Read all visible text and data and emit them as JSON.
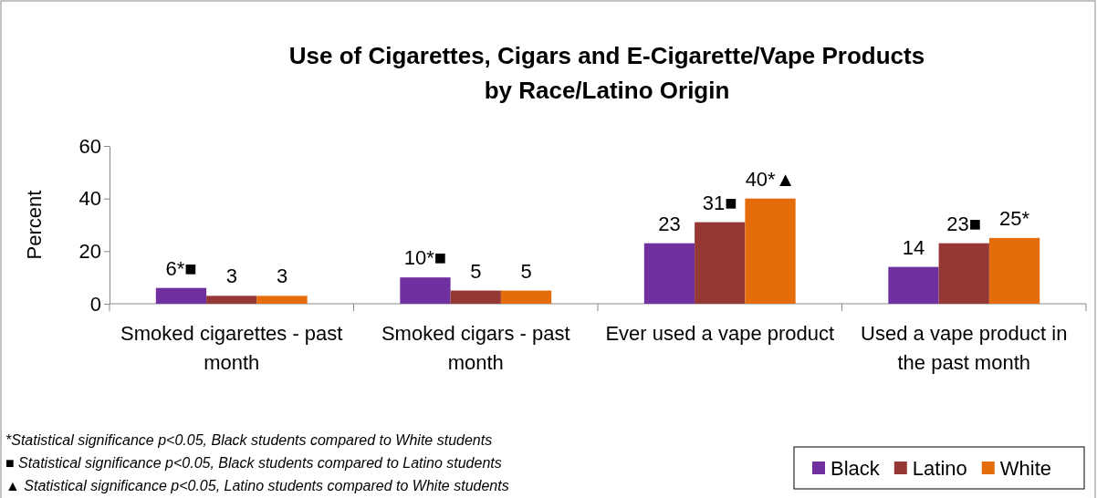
{
  "chart_data": {
    "type": "bar",
    "title": "Use of Cigarettes, Cigars and  E-Cigarette/Vape Products",
    "subtitle": "by Race/Latino Origin",
    "ylabel": "Percent",
    "categories": [
      "Smoked cigarettes - past month",
      "Smoked cigars - past month",
      "Ever used a vape product",
      "Used a vape product in the past month"
    ],
    "series": [
      {
        "name": "Black",
        "color": "#7030a0",
        "values": [
          6,
          10,
          23,
          14
        ],
        "value_labels": [
          "6*■",
          "10*■",
          "23",
          "14"
        ]
      },
      {
        "name": "Latino",
        "color": "#953735",
        "values": [
          3,
          5,
          31,
          23
        ],
        "value_labels": [
          "3",
          "5",
          "31■",
          "23■"
        ]
      },
      {
        "name": "White",
        "color": "#e46c0a",
        "values": [
          3,
          5,
          40,
          25
        ],
        "value_labels": [
          "3",
          "5",
          "40*▲",
          "25*"
        ]
      }
    ],
    "ylim": [
      0,
      60
    ],
    "yticks": [
      0,
      20,
      40,
      60
    ],
    "grid": false,
    "legend": "bottom right",
    "annotations": [
      "*Statistical significance p<0.05, Black students compared to White students",
      "■ Statistical significance p<0.05, Black students compared to Latino students",
      "▲ Statistical significance p<0.05, Latino students compared to White students"
    ]
  }
}
